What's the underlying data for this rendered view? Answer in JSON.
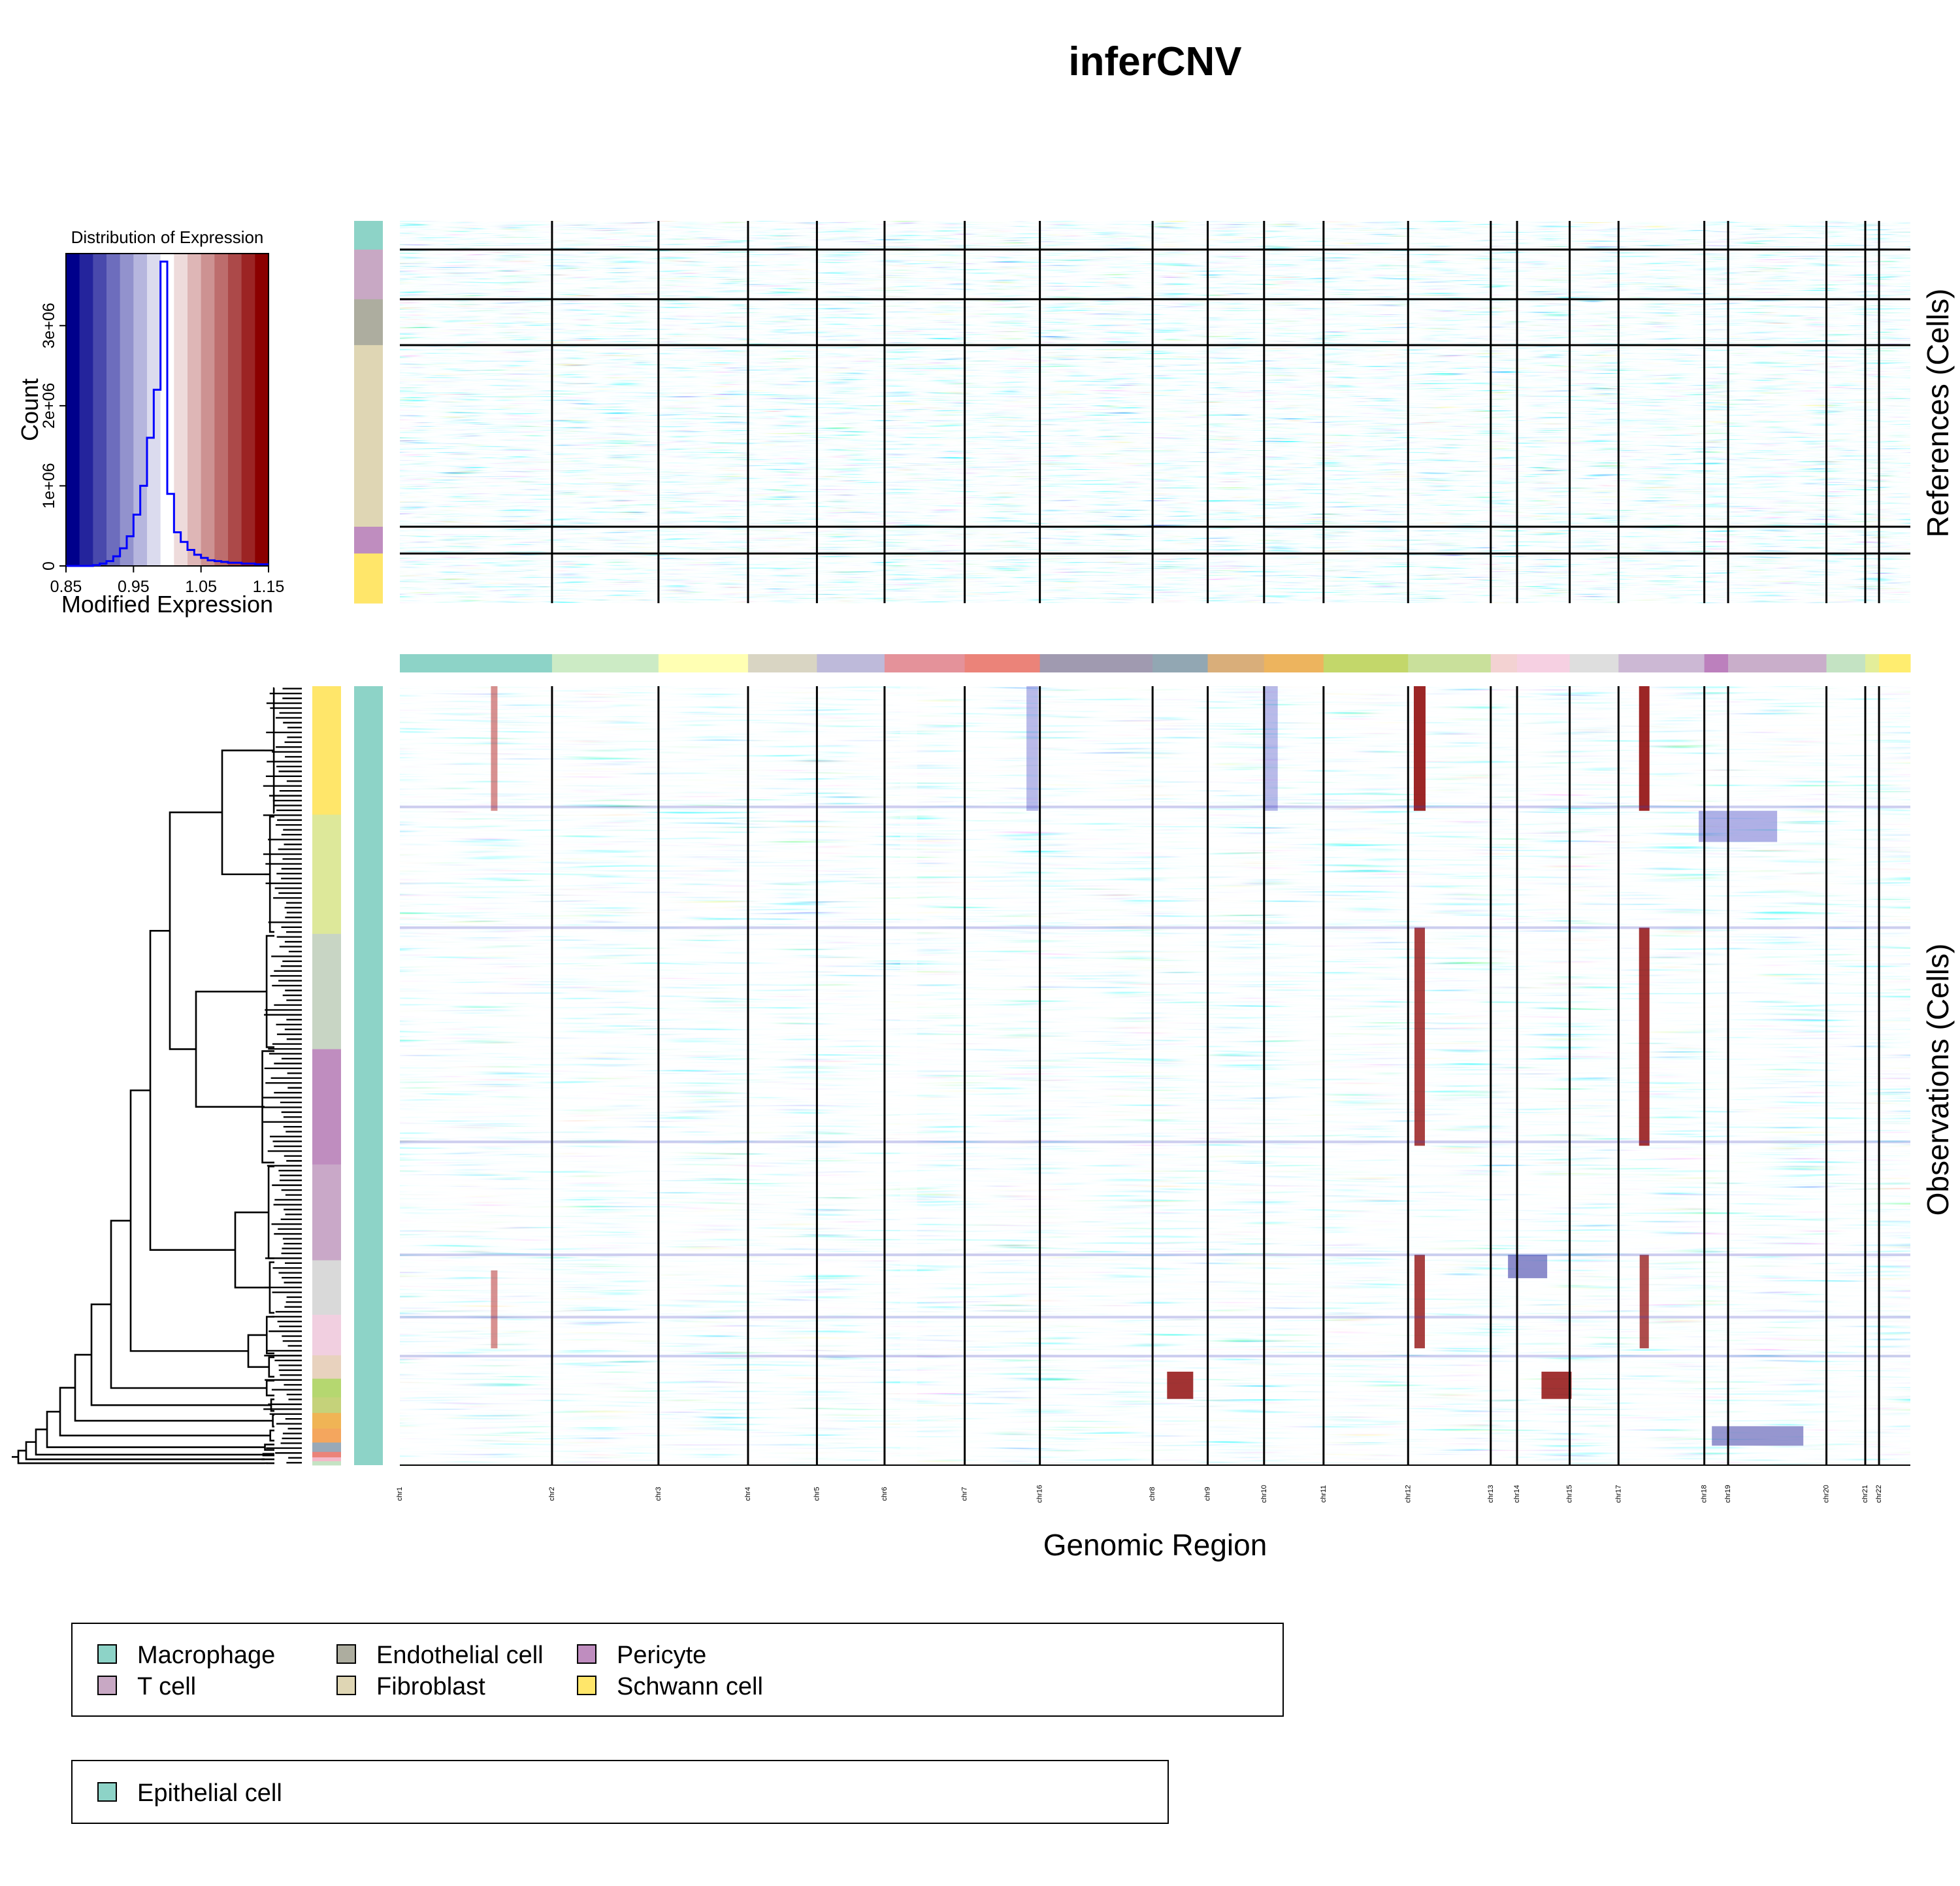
{
  "chart_data": {
    "type": "heatmap",
    "title": "inferCNV",
    "xlabel": "Genomic Region",
    "references_label": "References (Cells)",
    "observations_label": "Observations (Cells)",
    "color_scale": {
      "low": "#00008B",
      "mid": "#FFFFFF",
      "high": "#8B0000",
      "range": [
        0.85,
        1.15
      ]
    },
    "histogram": {
      "title": "Distribution of Expression",
      "xlabel": "Modified Expression",
      "ylabel": "Count",
      "xticks": [
        "0.85",
        "0.95",
        "1.05",
        "1.15"
      ],
      "yticks": [
        "0",
        "1e+06",
        "2e+06",
        "3e+06"
      ],
      "xlim": [
        0.85,
        1.15
      ],
      "ylim": [
        0,
        3900000
      ],
      "x": [
        0.85,
        0.86,
        0.87,
        0.88,
        0.89,
        0.9,
        0.91,
        0.92,
        0.93,
        0.94,
        0.95,
        0.96,
        0.97,
        0.98,
        0.99,
        1.0,
        1.01,
        1.02,
        1.03,
        1.04,
        1.05,
        1.06,
        1.07,
        1.08,
        1.09,
        1.1,
        1.11,
        1.12,
        1.13,
        1.14
      ],
      "counts": [
        0,
        0,
        0,
        0,
        10000,
        30000,
        60000,
        120000,
        220000,
        370000,
        640000,
        1000000,
        1600000,
        2200000,
        3800000,
        900000,
        420000,
        300000,
        200000,
        140000,
        100000,
        70000,
        60000,
        50000,
        40000,
        40000,
        30000,
        30000,
        20000,
        20000
      ]
    },
    "chromosomes": [
      "chr1",
      "chr2",
      "chr3",
      "chr4",
      "chr5",
      "chr6",
      "chr7",
      "chr16",
      "chr8",
      "chr9",
      "chr10",
      "chr11",
      "chr12",
      "chr13",
      "chr14",
      "chr15",
      "chr17",
      "chr18",
      "chr19",
      "chr20",
      "chr21",
      "chr22"
    ],
    "reference_groups": [
      {
        "name": "Macrophage",
        "color": "#8DD3C7"
      },
      {
        "name": "T cell",
        "color": "#C8A8C4"
      },
      {
        "name": "Endothelial cell",
        "color": "#ADAD9F"
      },
      {
        "name": "Fibroblast",
        "color": "#DFD6B4"
      },
      {
        "name": "Pericyte",
        "color": "#BF8DBF"
      },
      {
        "name": "Schwann cell",
        "color": "#FFE66A"
      }
    ],
    "observation_groups": [
      {
        "name": "Epithelial cell",
        "color": "#8DD3C7"
      }
    ]
  }
}
